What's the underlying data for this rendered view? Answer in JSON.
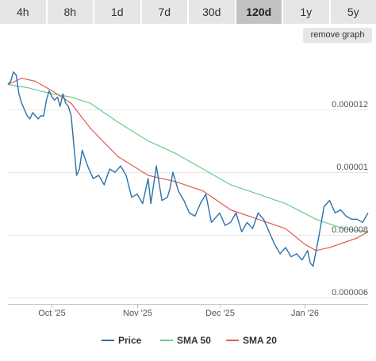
{
  "tabs": [
    {
      "label": "4h"
    },
    {
      "label": "8h"
    },
    {
      "label": "1d"
    },
    {
      "label": "7d"
    },
    {
      "label": "30d"
    },
    {
      "label": "120d",
      "active": true
    },
    {
      "label": "1y"
    },
    {
      "label": "5y"
    }
  ],
  "remove_graph_label": "remove graph",
  "colors": {
    "price": "#2b70ac",
    "sma50": "#66cc88",
    "sma20": "#e05b4f",
    "grid": "#e6e6e6",
    "axis": "#c0c0c0"
  },
  "chart_data": {
    "type": "line",
    "x_range": [
      "2025-09-15",
      "2026-01-24"
    ],
    "ylim": [
      5.8e-06,
      1.39e-05
    ],
    "y_ticks": [
      {
        "value": 1.2e-05,
        "label": "0.000012"
      },
      {
        "value": 1e-05,
        "label": "0.00001"
      },
      {
        "value": 8e-06,
        "label": "0.000008"
      },
      {
        "value": 6e-06,
        "label": "0.000006"
      }
    ],
    "x_ticks": [
      {
        "date": "2025-10-01",
        "label": "Oct '25"
      },
      {
        "date": "2025-11-01",
        "label": "Nov '25"
      },
      {
        "date": "2025-12-01",
        "label": "Dec '25"
      },
      {
        "date": "2026-01-01",
        "label": "Jan '26"
      }
    ],
    "grid": true,
    "legend_position": "bottom-center",
    "series": [
      {
        "name": "Price",
        "color": "#2b70ac",
        "points": [
          [
            "2025-09-15",
            1.28e-05
          ],
          [
            "2025-09-16",
            1.29e-05
          ],
          [
            "2025-09-17",
            1.32e-05
          ],
          [
            "2025-09-18",
            1.31e-05
          ],
          [
            "2025-09-19",
            1.25e-05
          ],
          [
            "2025-09-20",
            1.22e-05
          ],
          [
            "2025-09-21",
            1.2e-05
          ],
          [
            "2025-09-22",
            1.18e-05
          ],
          [
            "2025-09-23",
            1.17e-05
          ],
          [
            "2025-09-24",
            1.19e-05
          ],
          [
            "2025-09-25",
            1.18e-05
          ],
          [
            "2025-09-26",
            1.17e-05
          ],
          [
            "2025-09-27",
            1.18e-05
          ],
          [
            "2025-09-28",
            1.18e-05
          ],
          [
            "2025-09-29",
            1.23e-05
          ],
          [
            "2025-09-30",
            1.26e-05
          ],
          [
            "2025-10-01",
            1.24e-05
          ],
          [
            "2025-10-02",
            1.23e-05
          ],
          [
            "2025-10-03",
            1.24e-05
          ],
          [
            "2025-10-04",
            1.21e-05
          ],
          [
            "2025-10-05",
            1.25e-05
          ],
          [
            "2025-10-06",
            1.22e-05
          ],
          [
            "2025-10-07",
            1.21e-05
          ],
          [
            "2025-10-08",
            1.18e-05
          ],
          [
            "2025-10-10",
            9.9e-06
          ],
          [
            "2025-10-11",
            1.01e-05
          ],
          [
            "2025-10-12",
            1.07e-05
          ],
          [
            "2025-10-14",
            1.02e-05
          ],
          [
            "2025-10-16",
            9.8e-06
          ],
          [
            "2025-10-18",
            9.9e-06
          ],
          [
            "2025-10-20",
            9.6e-06
          ],
          [
            "2025-10-22",
            1.01e-05
          ],
          [
            "2025-10-24",
            1e-05
          ],
          [
            "2025-10-26",
            1.02e-05
          ],
          [
            "2025-10-28",
            9.9e-06
          ],
          [
            "2025-10-30",
            9.2e-06
          ],
          [
            "2025-11-01",
            9.3e-06
          ],
          [
            "2025-11-03",
            9e-06
          ],
          [
            "2025-11-05",
            9.8e-06
          ],
          [
            "2025-11-06",
            9e-06
          ],
          [
            "2025-11-08",
            1.02e-05
          ],
          [
            "2025-11-10",
            9.1e-06
          ],
          [
            "2025-11-12",
            9.2e-06
          ],
          [
            "2025-11-13",
            9.5e-06
          ],
          [
            "2025-11-14",
            1e-05
          ],
          [
            "2025-11-16",
            9.4e-06
          ],
          [
            "2025-11-18",
            9.1e-06
          ],
          [
            "2025-11-20",
            8.7e-06
          ],
          [
            "2025-11-22",
            8.6e-06
          ],
          [
            "2025-11-24",
            9e-06
          ],
          [
            "2025-11-26",
            9.3e-06
          ],
          [
            "2025-11-28",
            8.4e-06
          ],
          [
            "2025-11-30",
            8.6e-06
          ],
          [
            "2025-12-01",
            8.7e-06
          ],
          [
            "2025-12-03",
            8.3e-06
          ],
          [
            "2025-12-05",
            8.4e-06
          ],
          [
            "2025-12-07",
            8.7e-06
          ],
          [
            "2025-12-09",
            8.1e-06
          ],
          [
            "2025-12-11",
            8.4e-06
          ],
          [
            "2025-12-13",
            8.2e-06
          ],
          [
            "2025-12-15",
            8.7e-06
          ],
          [
            "2025-12-17",
            8.5e-06
          ],
          [
            "2025-12-19",
            8.1e-06
          ],
          [
            "2025-12-21",
            7.7e-06
          ],
          [
            "2025-12-23",
            7.4e-06
          ],
          [
            "2025-12-25",
            7.6e-06
          ],
          [
            "2025-12-27",
            7.3e-06
          ],
          [
            "2025-12-29",
            7.4e-06
          ],
          [
            "2025-12-31",
            7.2e-06
          ],
          [
            "2026-01-02",
            7.5e-06
          ],
          [
            "2026-01-03",
            7.1e-06
          ],
          [
            "2026-01-04",
            7e-06
          ],
          [
            "2026-01-06",
            7.9e-06
          ],
          [
            "2026-01-08",
            8.9e-06
          ],
          [
            "2026-01-10",
            9.1e-06
          ],
          [
            "2026-01-12",
            8.7e-06
          ],
          [
            "2026-01-14",
            8.8e-06
          ],
          [
            "2026-01-16",
            8.6e-06
          ],
          [
            "2026-01-18",
            8.5e-06
          ],
          [
            "2026-01-20",
            8.5e-06
          ],
          [
            "2026-01-22",
            8.4e-06
          ],
          [
            "2026-01-24",
            8.7e-06
          ]
        ]
      },
      {
        "name": "SMA 50",
        "color": "#66cc88",
        "points": [
          [
            "2025-09-15",
            1.28e-05
          ],
          [
            "2025-09-22",
            1.27e-05
          ],
          [
            "2025-10-01",
            1.25e-05
          ],
          [
            "2025-10-08",
            1.24e-05
          ],
          [
            "2025-10-15",
            1.22e-05
          ],
          [
            "2025-10-25",
            1.16e-05
          ],
          [
            "2025-11-05",
            1.1e-05
          ],
          [
            "2025-11-15",
            1.06e-05
          ],
          [
            "2025-11-25",
            1.01e-05
          ],
          [
            "2025-12-05",
            9.6e-06
          ],
          [
            "2025-12-15",
            9.3e-06
          ],
          [
            "2025-12-25",
            9e-06
          ],
          [
            "2026-01-05",
            8.5e-06
          ],
          [
            "2026-01-15",
            8.2e-06
          ],
          [
            "2026-01-24",
            8.1e-06
          ]
        ]
      },
      {
        "name": "SMA 20",
        "color": "#e05b4f",
        "points": [
          [
            "2025-09-15",
            1.28e-05
          ],
          [
            "2025-09-20",
            1.3e-05
          ],
          [
            "2025-09-25",
            1.29e-05
          ],
          [
            "2025-10-01",
            1.26e-05
          ],
          [
            "2025-10-08",
            1.22e-05
          ],
          [
            "2025-10-15",
            1.14e-05
          ],
          [
            "2025-10-25",
            1.05e-05
          ],
          [
            "2025-11-05",
            9.9e-06
          ],
          [
            "2025-11-15",
            9.7e-06
          ],
          [
            "2025-11-25",
            9.4e-06
          ],
          [
            "2025-12-05",
            8.8e-06
          ],
          [
            "2025-12-15",
            8.5e-06
          ],
          [
            "2025-12-25",
            8.2e-06
          ],
          [
            "2026-01-01",
            7.7e-06
          ],
          [
            "2026-01-05",
            7.5e-06
          ],
          [
            "2026-01-10",
            7.6e-06
          ],
          [
            "2026-01-20",
            7.9e-06
          ],
          [
            "2026-01-24",
            8.1e-06
          ]
        ]
      }
    ]
  }
}
